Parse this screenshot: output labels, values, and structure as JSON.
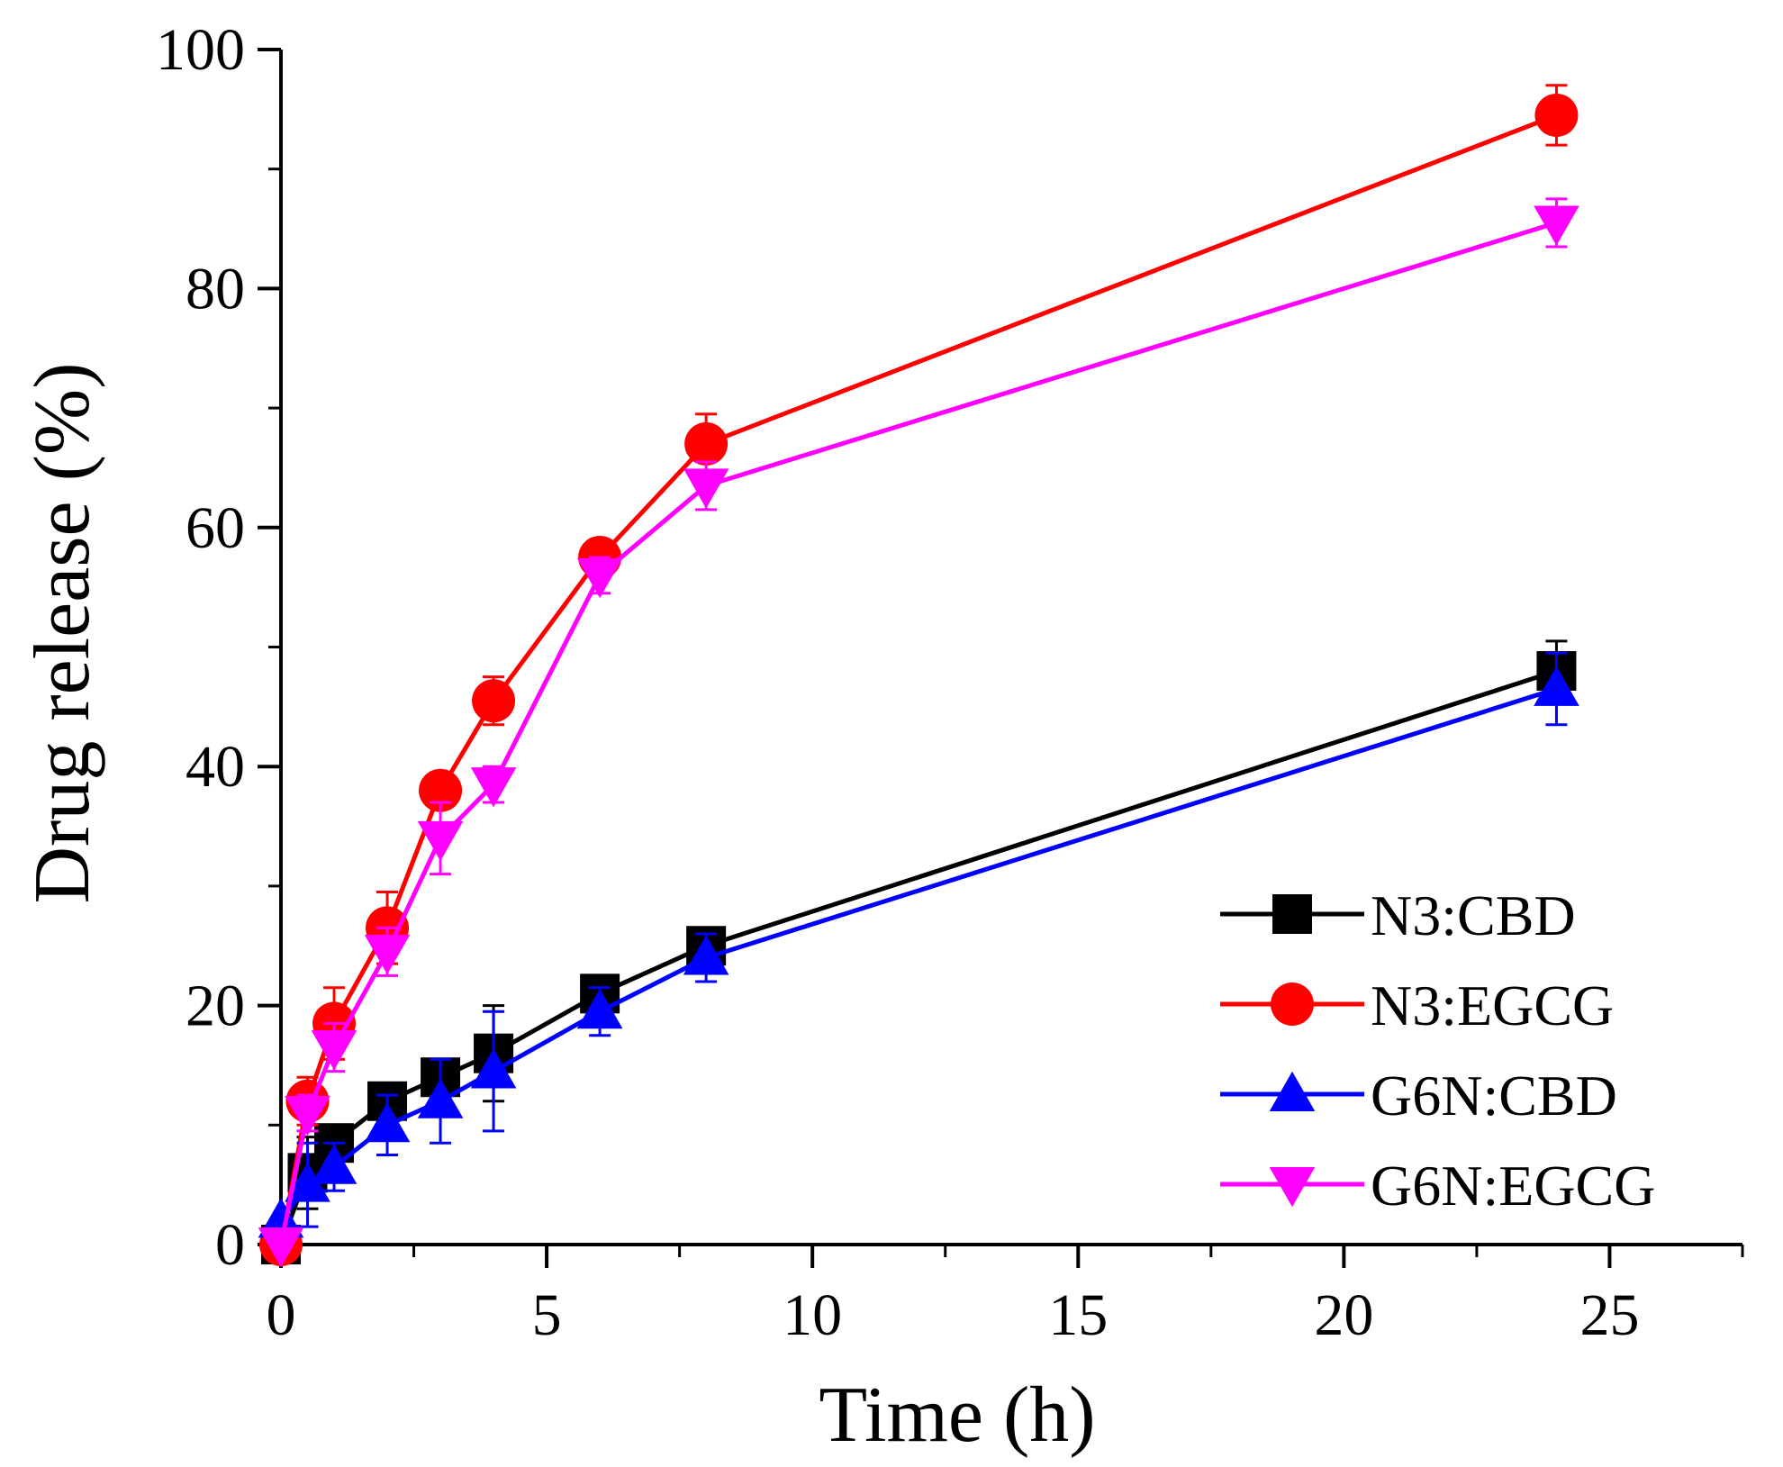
{
  "chart_data": {
    "type": "line",
    "title": "",
    "xlabel": "Time (h)",
    "ylabel": "Drug release (%)",
    "xlim": [
      0,
      27.5
    ],
    "ylim": [
      0,
      100
    ],
    "x_ticks": [
      0,
      5,
      10,
      15,
      20,
      25
    ],
    "x_tick_labels": [
      "0",
      "5",
      "10",
      "15",
      "20",
      "25"
    ],
    "y_ticks": [
      0,
      20,
      40,
      60,
      80,
      100
    ],
    "y_tick_labels": [
      "0",
      "20",
      "40",
      "60",
      "80",
      "100"
    ],
    "grid": false,
    "legend_position": "bottom-right",
    "series": [
      {
        "name": "N3:CBD",
        "color": "#000000",
        "marker": "square",
        "x": [
          0,
          0.5,
          1,
          2,
          3,
          4,
          6,
          8,
          24
        ],
        "y": [
          0,
          6,
          8.5,
          12,
          14,
          16,
          21,
          25,
          48
        ],
        "error": [
          0,
          3,
          1.5,
          1.5,
          1.5,
          4,
          1.5,
          1.5,
          2.5
        ]
      },
      {
        "name": "N3:EGCG",
        "color": "#ff0000",
        "marker": "circle",
        "x": [
          0,
          0.5,
          1,
          2,
          3,
          4,
          6,
          8,
          24
        ],
        "y": [
          0,
          12,
          18.5,
          26.5,
          38,
          45.5,
          57.5,
          67,
          94.5
        ],
        "error": [
          0,
          2,
          3,
          3,
          1.5,
          2,
          1.5,
          2.5,
          2.5
        ]
      },
      {
        "name": "G6N:CBD",
        "color": "#0000ff",
        "marker": "triangle-up",
        "x": [
          0,
          0.5,
          1,
          2,
          3,
          4,
          6,
          8,
          24
        ],
        "y": [
          2,
          5,
          6.5,
          10,
          12,
          14.5,
          19.5,
          24,
          46.5
        ],
        "error": [
          0,
          3.5,
          2,
          2.5,
          3.5,
          5,
          2,
          2,
          3
        ]
      },
      {
        "name": "G6N:EGCG",
        "color": "#ff00ff",
        "marker": "triangle-down",
        "x": [
          0,
          0.5,
          1,
          2,
          3,
          4,
          6,
          8,
          24
        ],
        "y": [
          0,
          11,
          16.5,
          24.5,
          34,
          38.5,
          56,
          63.5,
          85.5
        ],
        "error": [
          0,
          1.5,
          2,
          2,
          3,
          1.5,
          1.5,
          2,
          2
        ]
      }
    ]
  }
}
